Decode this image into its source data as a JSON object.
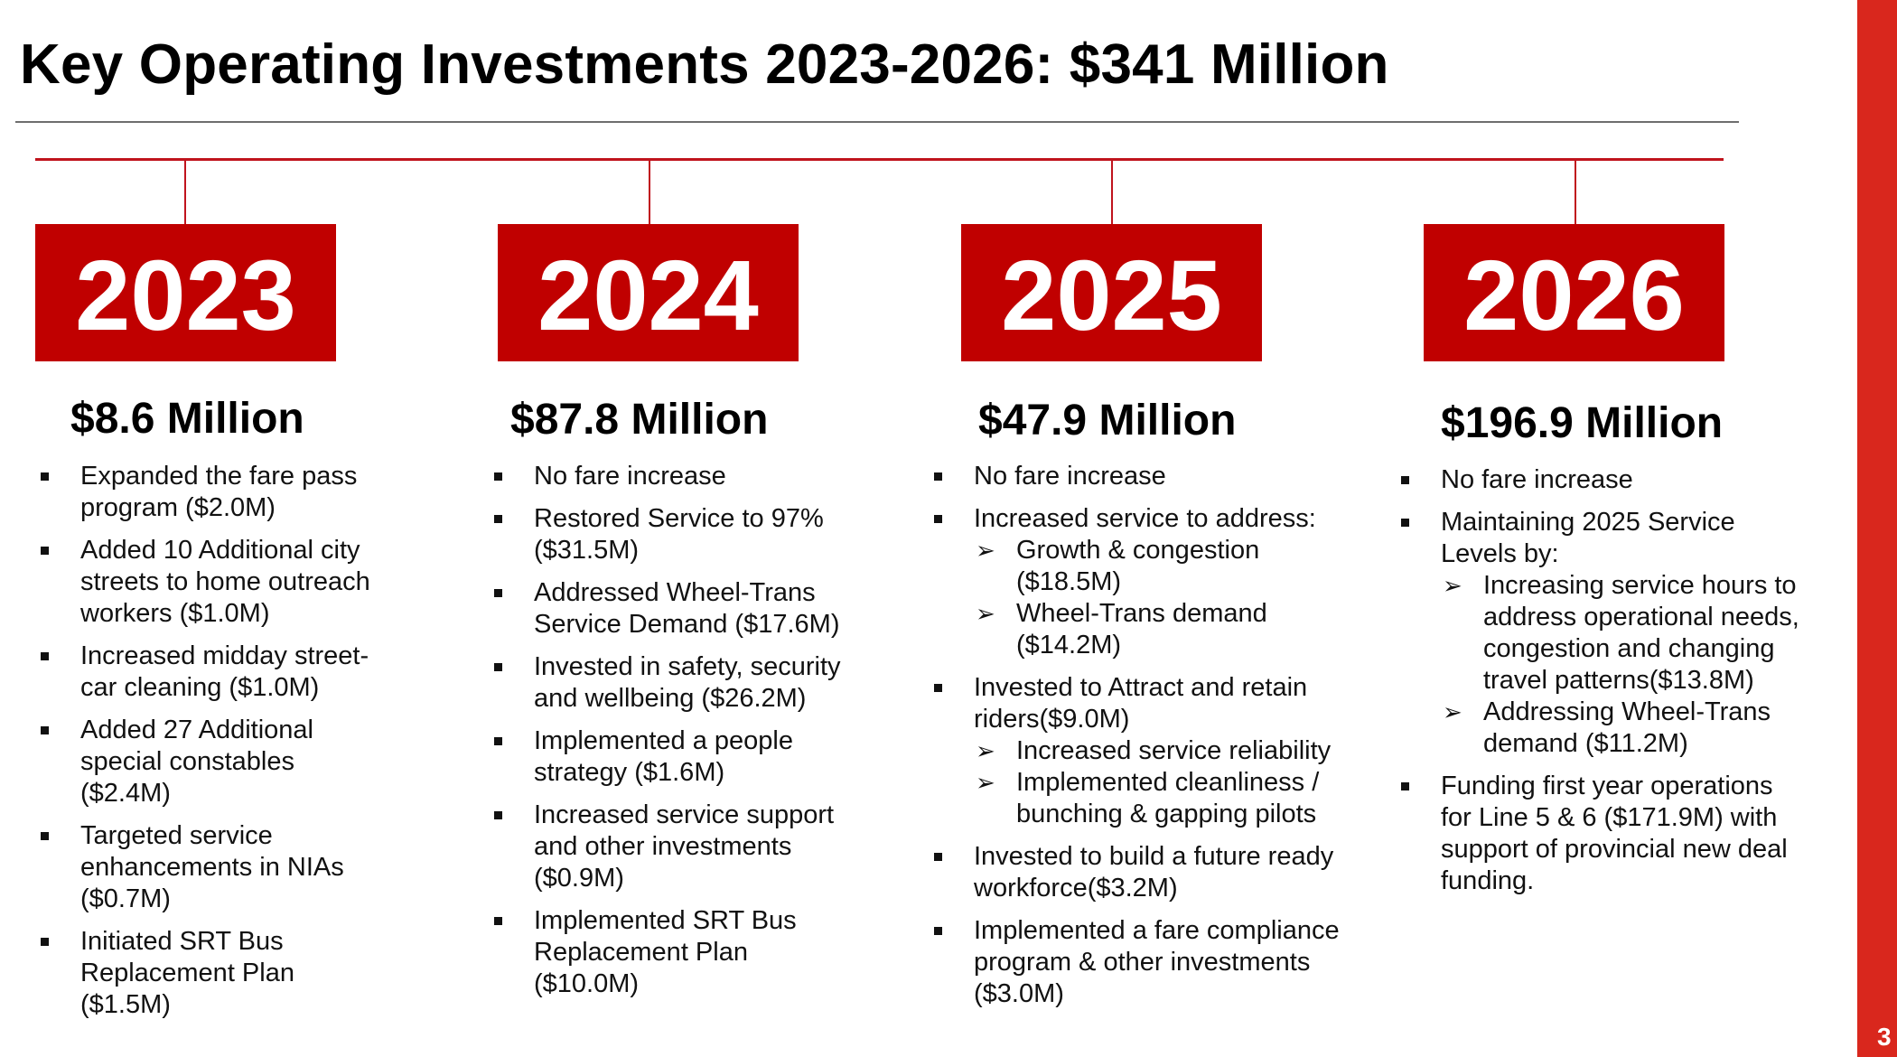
{
  "title": "Key Operating Investments 2023-2026: $341 Million",
  "page_number": "3",
  "colors": {
    "accent_red": "#c00000",
    "line_red": "#c0141d",
    "stripe_red": "#d9271d"
  },
  "columns": [
    {
      "year": "2023",
      "amount": "$8.6 Million",
      "items": [
        {
          "text": "Expanded the fare pass program  ($2.0M)"
        },
        {
          "text": "Added 10 Additional city streets to home outreach workers ($1.0M)"
        },
        {
          "text": "Increased midday street-car cleaning ($1.0M)"
        },
        {
          "text": "Added 27 Additional special constables ($2.4M)"
        },
        {
          "text": "Targeted service enhancements in NIAs ($0.7M)"
        },
        {
          "text": "Initiated SRT Bus Replacement Plan ($1.5M)"
        }
      ]
    },
    {
      "year": "2024",
      "amount": "$87.8 Million",
      "items": [
        {
          "text": "No fare increase"
        },
        {
          "text": "Restored Service to 97% ($31.5M)"
        },
        {
          "text": "Addressed Wheel-Trans Service Demand ($17.6M)"
        },
        {
          "text": "Invested in safety, security and wellbeing ($26.2M)"
        },
        {
          "text": "Implemented a people strategy ($1.6M)"
        },
        {
          "text": "Increased service support and other investments ($0.9M)"
        },
        {
          "text": "Implemented SRT Bus Replacement Plan ($10.0M)"
        }
      ]
    },
    {
      "year": "2025",
      "amount": "$47.9 Million",
      "items": [
        {
          "text": "No fare increase"
        },
        {
          "text": "Increased service to address:",
          "subitems": [
            "Growth & congestion ($18.5M)",
            "Wheel-Trans demand ($14.2M)"
          ]
        },
        {
          "text": "Invested to Attract and retain riders($9.0M)",
          "subitems": [
            "Increased service reliability",
            "Implemented cleanliness / bunching & gapping pilots"
          ]
        },
        {
          "text": "Invested to build a future ready workforce($3.2M)"
        },
        {
          "text": "Implemented a fare compliance program & other investments ($3.0M)"
        }
      ]
    },
    {
      "year": "2026",
      "amount": "$196.9 Million",
      "items": [
        {
          "text": "No fare increase"
        },
        {
          "text": "Maintaining 2025 Service Levels by:",
          "subitems": [
            "Increasing service hours to address operational needs, congestion and changing travel patterns($13.8M)",
            "Addressing Wheel-Trans demand ($11.2M)"
          ]
        },
        {
          "text": "Funding first year operations for Line 5 & 6 ($171.9M) with support of provincial new deal funding."
        }
      ]
    }
  ]
}
